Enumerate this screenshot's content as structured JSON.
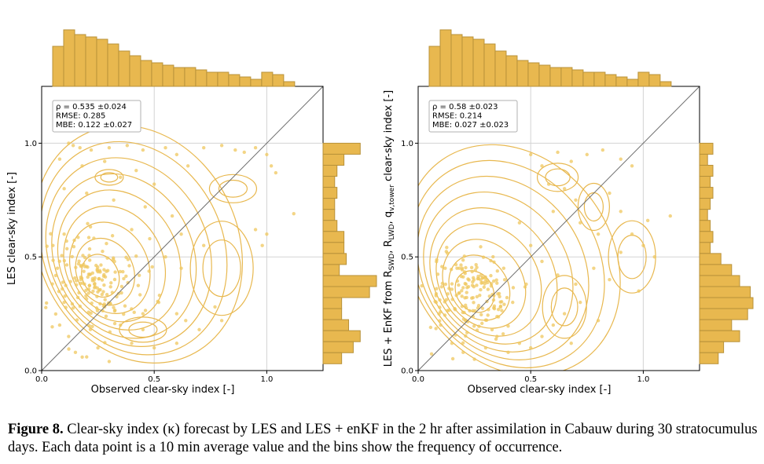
{
  "colors": {
    "accent": "#e8b84f",
    "accent_edge": "#b8923a",
    "point": "#efc75e",
    "axis": "#000000",
    "grid": "#d3d3d3",
    "diagonal": "#6d6d6d"
  },
  "caption": {
    "label": "Figure 8.",
    "text": "Clear-sky index (κ) forecast by LES and LES + enKF in the 2 hr after assimilation in Cabauw during 30 stratocumulus days. Each data point is a 10 min average value and the bins show the frequency of occurrence."
  },
  "chart_data": [
    {
      "type": "scatter",
      "panel": "left",
      "xlabel": "Observed clear-sky index [-]",
      "ylabel": "LES clear-sky index [-]",
      "xlim": [
        0,
        1.25
      ],
      "ylim": [
        0,
        1.25
      ],
      "xticks": [
        "0.0",
        "0.5",
        "1.0"
      ],
      "yticks": [
        "0.0",
        "0.5",
        "1.0"
      ],
      "grid": true,
      "stats": [
        "ρ = 0.535 ±0.024",
        "RMSE: 0.285",
        "MBE: 0.122 ±0.027"
      ],
      "stats_placement": "top-left",
      "one_to_one_line": true,
      "cluster": {
        "center": [
          0.24,
          0.4
        ],
        "spread": [
          0.1,
          0.11
        ],
        "points": 170
      },
      "points": [
        [
          0.12,
          1.0
        ],
        [
          0.14,
          0.99
        ],
        [
          0.17,
          0.98
        ],
        [
          0.22,
          0.97
        ],
        [
          0.3,
          0.98
        ],
        [
          0.38,
          0.99
        ],
        [
          0.45,
          0.97
        ],
        [
          0.55,
          0.98
        ],
        [
          0.6,
          0.95
        ],
        [
          0.72,
          0.98
        ],
        [
          0.8,
          0.99
        ],
        [
          0.86,
          0.97
        ],
        [
          0.9,
          0.96
        ],
        [
          0.95,
          0.98
        ],
        [
          1.0,
          0.95
        ],
        [
          0.08,
          0.93
        ],
        [
          0.18,
          0.9
        ],
        [
          0.28,
          0.92
        ],
        [
          0.42,
          0.88
        ],
        [
          0.35,
          0.85
        ],
        [
          0.5,
          0.82
        ],
        [
          0.65,
          0.9
        ],
        [
          1.02,
          0.9
        ],
        [
          1.04,
          0.87
        ],
        [
          0.1,
          0.8
        ],
        [
          0.2,
          0.78
        ],
        [
          0.32,
          0.75
        ],
        [
          0.46,
          0.72
        ],
        [
          0.58,
          0.68
        ],
        [
          0.62,
          0.6
        ],
        [
          0.72,
          0.55
        ],
        [
          0.95,
          0.62
        ],
        [
          1.12,
          0.69
        ],
        [
          1.0,
          0.6
        ],
        [
          0.98,
          0.55
        ],
        [
          0.55,
          0.5
        ],
        [
          0.62,
          0.45
        ],
        [
          0.48,
          0.58
        ],
        [
          0.4,
          0.62
        ],
        [
          0.45,
          0.25
        ],
        [
          0.52,
          0.3
        ],
        [
          0.6,
          0.25
        ],
        [
          0.64,
          0.22
        ],
        [
          0.7,
          0.18
        ],
        [
          0.8,
          0.22
        ],
        [
          0.77,
          0.28
        ],
        [
          0.6,
          0.12
        ],
        [
          0.5,
          0.1
        ],
        [
          0.4,
          0.12
        ],
        [
          0.45,
          0.18
        ],
        [
          0.15,
          0.08
        ],
        [
          0.2,
          0.06
        ],
        [
          0.25,
          0.1
        ],
        [
          0.3,
          0.04
        ],
        [
          0.12,
          0.15
        ],
        [
          0.35,
          0.2
        ],
        [
          0.28,
          0.28
        ],
        [
          0.08,
          0.2
        ],
        [
          0.1,
          0.3
        ],
        [
          0.07,
          0.45
        ],
        [
          0.05,
          0.55
        ],
        [
          0.1,
          0.6
        ]
      ],
      "contour_levels": 9,
      "hist_top": [
        17,
        24,
        22,
        21,
        20,
        18,
        15,
        13,
        11,
        10,
        9,
        8,
        8,
        7,
        6,
        6,
        5,
        4,
        3,
        6,
        5,
        2
      ],
      "hist_right": [
        16,
        9,
        6,
        5,
        6,
        5,
        5,
        6,
        9,
        9,
        10,
        7,
        23,
        20,
        8,
        8,
        11,
        16,
        13,
        8
      ]
    },
    {
      "type": "scatter",
      "panel": "right",
      "xlabel": "Observed clear-sky index [-]",
      "ylabel": "LES + EnKF from RSWD, RLWD, qv,tower clear-sky index [-]",
      "ylabel_parts": {
        "prefix": "LES + EnKF from R",
        "sub1": "SWD",
        "sep1": ", R",
        "sub2": "LWD",
        "sep2": ", q",
        "sub3": "v,tower",
        "suffix": " clear-sky index [-]"
      },
      "xlim": [
        0,
        1.25
      ],
      "ylim": [
        0,
        1.25
      ],
      "xticks": [
        "0.0",
        "0.5",
        "1.0"
      ],
      "yticks": [
        "0.0",
        "0.5",
        "1.0"
      ],
      "grid": true,
      "stats": [
        "ρ = 0.58 ±0.023",
        "RMSE: 0.214",
        "MBE: 0.027 ±0.023"
      ],
      "stats_placement": "top-left",
      "one_to_one_line": true,
      "cluster": {
        "center": [
          0.23,
          0.33
        ],
        "spread": [
          0.09,
          0.09
        ],
        "points": 170
      },
      "points": [
        [
          0.5,
          0.95
        ],
        [
          0.55,
          0.9
        ],
        [
          0.62,
          0.96
        ],
        [
          0.68,
          0.92
        ],
        [
          0.75,
          0.95
        ],
        [
          0.82,
          0.97
        ],
        [
          0.9,
          0.93
        ],
        [
          0.95,
          0.9
        ],
        [
          0.58,
          0.82
        ],
        [
          0.65,
          0.8
        ],
        [
          0.7,
          0.75
        ],
        [
          0.85,
          0.78
        ],
        [
          0.9,
          0.7
        ],
        [
          1.02,
          0.66
        ],
        [
          1.12,
          0.68
        ],
        [
          0.95,
          0.6
        ],
        [
          1.0,
          0.55
        ],
        [
          1.05,
          0.5
        ],
        [
          0.9,
          0.52
        ],
        [
          0.8,
          0.6
        ],
        [
          0.72,
          0.65
        ],
        [
          0.6,
          0.7
        ],
        [
          0.45,
          0.65
        ],
        [
          0.5,
          0.55
        ],
        [
          0.55,
          0.48
        ],
        [
          0.62,
          0.42
        ],
        [
          0.7,
          0.38
        ],
        [
          0.72,
          0.3
        ],
        [
          0.65,
          0.25
        ],
        [
          0.6,
          0.2
        ],
        [
          0.55,
          0.15
        ],
        [
          0.5,
          0.1
        ],
        [
          0.45,
          0.12
        ],
        [
          0.4,
          0.08
        ],
        [
          0.35,
          0.15
        ],
        [
          0.3,
          0.1
        ],
        [
          0.25,
          0.05
        ],
        [
          0.2,
          0.08
        ],
        [
          0.15,
          0.12
        ],
        [
          0.1,
          0.2
        ],
        [
          0.08,
          0.3
        ],
        [
          0.12,
          0.45
        ],
        [
          0.42,
          0.3
        ],
        [
          0.48,
          0.38
        ],
        [
          0.38,
          0.45
        ],
        [
          0.78,
          0.45
        ],
        [
          0.85,
          0.4
        ],
        [
          0.8,
          0.22
        ],
        [
          0.68,
          0.12
        ],
        [
          0.98,
          0.35
        ]
      ],
      "contour_levels": 9,
      "hist_top": [
        17,
        24,
        22,
        21,
        20,
        18,
        15,
        13,
        11,
        10,
        9,
        8,
        8,
        7,
        6,
        6,
        5,
        4,
        3,
        6,
        5,
        2
      ],
      "hist_right": [
        5,
        3,
        5,
        4,
        5,
        4,
        3,
        4,
        5,
        4,
        8,
        12,
        15,
        19,
        20,
        18,
        12,
        15,
        9,
        7
      ]
    }
  ]
}
